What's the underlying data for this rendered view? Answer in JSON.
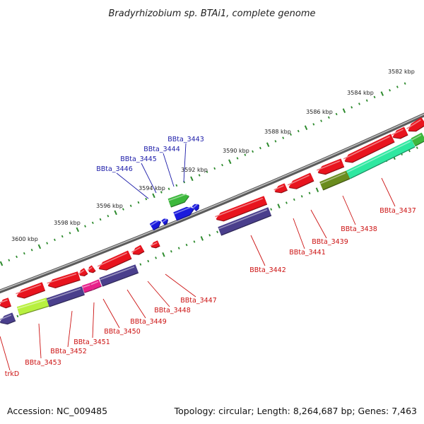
{
  "title": "Bradyrhizobium sp. BTAi1, complete genome",
  "footer": {
    "accession": "Accession: NC_009485",
    "summary": "Topology: circular; Length: 8,264,687 bp; Genes: 7,463"
  },
  "scale_labels": [
    "3582 kbp",
    "3584 kbp",
    "3586 kbp",
    "3588 kbp",
    "3590 kbp",
    "3592 kbp",
    "3594 kbp",
    "3596 kbp",
    "3598 kbp",
    "3600 kbp"
  ],
  "gene_labels_forward": [
    "BBta_3443",
    "BBta_3444",
    "BBta_3445",
    "BBta_3446"
  ],
  "gene_labels_reverse": [
    "BBta_3437",
    "BBta_3438",
    "BBta_3439",
    "BBta_3441",
    "BBta_3442",
    "BBta_3447",
    "BBta_3448",
    "BBta_3449",
    "BBta_3450",
    "BBta_3451",
    "BBta_3452",
    "BBta_3453",
    "trkD"
  ],
  "colors": {
    "backbone": "#8a8a8a",
    "scale_ticks": "#2e8b2e",
    "gene_red": "#e8141e",
    "gene_navy": "#4a3f8c",
    "gene_green": "#3cb83c",
    "gene_blue": "#1a1adc",
    "gene_teal": "#2ee8a0",
    "gene_olive": "#6a8c1e",
    "gene_lime": "#b8f040",
    "gene_magenta": "#e8208a",
    "label_forward": "#1a1aa8",
    "label_reverse": "#cc1111"
  }
}
